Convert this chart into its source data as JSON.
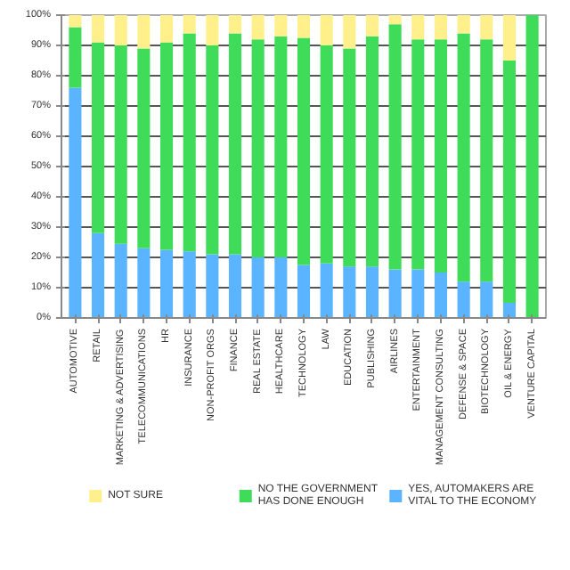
{
  "chart_data": {
    "type": "bar",
    "stacked": true,
    "categories": [
      "AUTOMOTIVE",
      "RETAIL",
      "MARKETING & ADVERTISING",
      "TELECOMMUNICATIONS",
      "HR",
      "INSURANCE",
      "NON-PROFIT ORGS",
      "FINANCE",
      "REAL ESTATE",
      "HEALTHCARE",
      "TECHNOLOGY",
      "LAW",
      "EDUCATION",
      "PUBLISHING",
      "AIRLINES",
      "ENTERTAINMENT",
      "MANAGEMENT CONSULTING",
      "DEFENSE & SPACE",
      "BIOTECHNOLOGY",
      "OIL & ENERGY",
      "VENTURE CAPITAL"
    ],
    "series": [
      {
        "name": "YES, AUTOMAKERS ARE VITAL TO THE ECONOMY",
        "color": "#5ab4ff",
        "values": [
          76,
          28,
          24.5,
          23,
          22.5,
          22,
          21,
          21,
          20,
          20,
          17.5,
          18,
          17,
          17,
          16,
          16,
          15,
          12,
          12,
          5,
          0
        ]
      },
      {
        "name": "NO THE GOVERNMENT HAS DONE ENOUGH",
        "color": "#3fdc5a",
        "values": [
          20,
          63,
          65.5,
          66,
          68.5,
          72,
          69,
          73,
          72,
          73,
          75,
          72,
          72,
          76,
          81,
          76,
          77,
          82,
          80,
          80,
          100
        ]
      },
      {
        "name": "NOT SURE",
        "color": "#fff08c",
        "values": [
          4,
          9,
          10,
          11,
          9,
          6,
          10,
          6,
          8,
          7,
          7.5,
          10,
          11,
          7,
          3,
          8,
          8,
          6,
          8,
          15,
          0
        ]
      }
    ],
    "ylim": [
      0,
      100
    ],
    "yticks": [
      {
        "value": 0,
        "label": "0%"
      },
      {
        "value": 10,
        "label": "10%"
      },
      {
        "value": 20,
        "label": "20%"
      },
      {
        "value": 30,
        "label": "30%"
      },
      {
        "value": 40,
        "label": "40%"
      },
      {
        "value": 50,
        "label": "50%"
      },
      {
        "value": 60,
        "label": "60%"
      },
      {
        "value": 70,
        "label": "70%"
      },
      {
        "value": 80,
        "label": "80%"
      },
      {
        "value": 90,
        "label": "90%"
      },
      {
        "value": 100,
        "label": "100%"
      }
    ],
    "grid": "y",
    "legend": "bottom"
  }
}
